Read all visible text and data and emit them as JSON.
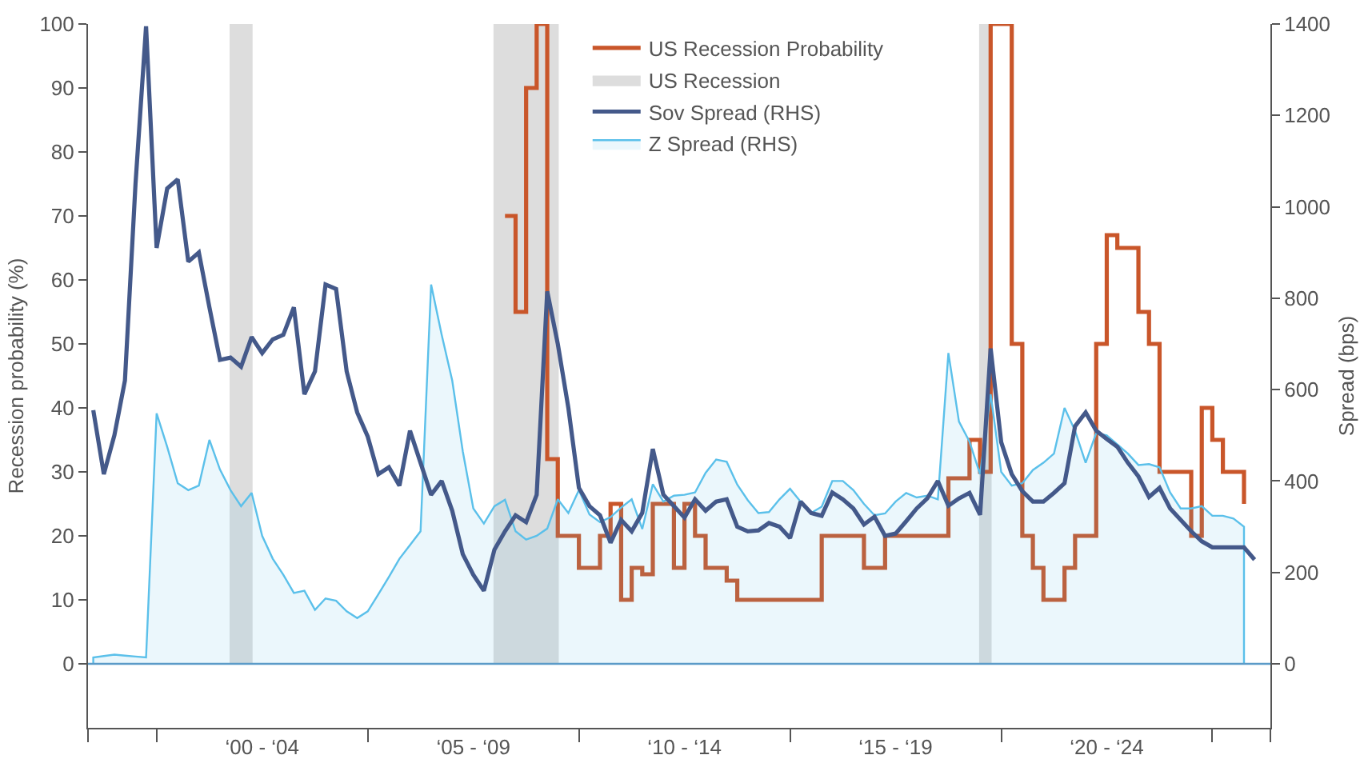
{
  "chart_data": {
    "type": "line",
    "ylabel": "Recession probability (%)",
    "y2label": "Spread (bps)",
    "ylim": [
      -10,
      100
    ],
    "y2lim": [
      -140,
      1400
    ],
    "yticks": [
      0,
      10,
      20,
      30,
      40,
      50,
      60,
      70,
      80,
      90,
      100
    ],
    "y2ticks": [
      0,
      200,
      400,
      600,
      800,
      1000,
      1200,
      1400
    ],
    "categories": [
      null,
      null,
      null,
      null,
      null,
      null,
      null,
      null,
      null,
      null,
      null,
      null,
      null,
      null,
      null,
      null,
      "‘00 - ‘04",
      null,
      null,
      null,
      null,
      null,
      null,
      null,
      null,
      null,
      null,
      null,
      null,
      null,
      null,
      null,
      null,
      null,
      null,
      null,
      "‘05 - ‘09",
      null,
      null,
      null,
      null,
      null,
      null,
      null,
      null,
      null,
      null,
      null,
      null,
      null,
      null,
      null,
      null,
      null,
      null,
      null,
      "‘10 - ‘14",
      null,
      null,
      null,
      null,
      null,
      null,
      null,
      null,
      null,
      null,
      null,
      null,
      null,
      null,
      null,
      null,
      null,
      null,
      null,
      "‘15 - ‘19",
      null,
      null,
      null,
      null,
      null,
      null,
      null,
      null,
      null,
      null,
      null,
      null,
      null,
      null,
      null,
      null,
      null,
      null,
      null,
      "‘20 - ‘24",
      null,
      null,
      null,
      null,
      null,
      null,
      null,
      null,
      null,
      null,
      null,
      null,
      null,
      null,
      null
    ],
    "legend": "top",
    "ref_lines": [
      {
        "axis": "y",
        "value": 0,
        "color": "#5b9bc8"
      }
    ],
    "series": [
      {
        "name": "US Recession Probability",
        "type": "step",
        "color": "#c9562a",
        "values": [
          null,
          null,
          null,
          null,
          null,
          null,
          null,
          null,
          null,
          null,
          null,
          null,
          null,
          null,
          null,
          null,
          null,
          null,
          null,
          null,
          null,
          null,
          null,
          null,
          null,
          null,
          null,
          null,
          null,
          null,
          null,
          null,
          null,
          null,
          null,
          null,
          null,
          null,
          null,
          70,
          55,
          90,
          100,
          32,
          20,
          20,
          15,
          15,
          20,
          25,
          10,
          15,
          14,
          25,
          25,
          15,
          25,
          20,
          15,
          15,
          13,
          10,
          10,
          10,
          10,
          10,
          10,
          10,
          10,
          20,
          20,
          20,
          20,
          15,
          15,
          20,
          20,
          20,
          20,
          20,
          20,
          29,
          29,
          35,
          30,
          100,
          100,
          50,
          20,
          15,
          10,
          10,
          15,
          20,
          20,
          50,
          67,
          65,
          65,
          55,
          50,
          30,
          30,
          30,
          20,
          40,
          35,
          30,
          30,
          25,
          null,
          null
        ]
      },
      {
        "name": "US Recession",
        "type": "area",
        "color": "#dddddd",
        "values": [
          null,
          null,
          null,
          null,
          null,
          null,
          null,
          null,
          null,
          null,
          null,
          null,
          null,
          100,
          100,
          100,
          null,
          null,
          null,
          null,
          null,
          null,
          null,
          null,
          null,
          null,
          null,
          null,
          null,
          null,
          null,
          null,
          null,
          null,
          null,
          null,
          null,
          null,
          100,
          100,
          100,
          100,
          100,
          100,
          100,
          null,
          null,
          null,
          null,
          null,
          null,
          null,
          null,
          null,
          null,
          null,
          null,
          null,
          null,
          null,
          null,
          null,
          null,
          null,
          null,
          null,
          null,
          null,
          null,
          null,
          null,
          null,
          null,
          null,
          null,
          null,
          null,
          null,
          null,
          null,
          null,
          null,
          null,
          null,
          100,
          100,
          null,
          null,
          null,
          null,
          null,
          null,
          null,
          null,
          null,
          null,
          null,
          null,
          null,
          null,
          null,
          null,
          null,
          null,
          null,
          null,
          null,
          null,
          null,
          null,
          null,
          null
        ]
      },
      {
        "name": "Sov Spread (RHS)",
        "axis": "y2",
        "color": "#44598a",
        "values": [
          555,
          415,
          500,
          620,
          1050,
          1395,
          910,
          1040,
          1060,
          880,
          900,
          780,
          665,
          670,
          650,
          715,
          680,
          710,
          720,
          780,
          590,
          640,
          830,
          820,
          640,
          550,
          497,
          415,
          430,
          390,
          510,
          440,
          370,
          400,
          335,
          240,
          195,
          160,
          250,
          290,
          325,
          310,
          370,
          815,
          700,
          560,
          385,
          345,
          325,
          265,
          315,
          290,
          330,
          470,
          370,
          345,
          320,
          360,
          335,
          355,
          360,
          300,
          290,
          292,
          308,
          300,
          275,
          355,
          330,
          324,
          375,
          360,
          340,
          305,
          322,
          280,
          285,
          312,
          340,
          362,
          400,
          346,
          362,
          374,
          326,
          690,
          485,
          415,
          378,
          355,
          355,
          374,
          395,
          520,
          550,
          510,
          492,
          475,
          440,
          410,
          365,
          385,
          340,
          315,
          290,
          268,
          255,
          255,
          255,
          255,
          228,
          null
        ]
      },
      {
        "name": "Z Spread (RHS)",
        "type": "area",
        "axis": "y2",
        "color": "#5bc0ea",
        "values": [
          14,
          17,
          20,
          18,
          16,
          14,
          548,
          475,
          395,
          380,
          390,
          490,
          425,
          380,
          345,
          374,
          280,
          230,
          195,
          155,
          160,
          118,
          143,
          138,
          115,
          100,
          115,
          152,
          190,
          230,
          260,
          290,
          830,
          720,
          620,
          465,
          340,
          307,
          345,
          359,
          290,
          272,
          280,
          296,
          360,
          330,
          380,
          327,
          310,
          321,
          342,
          360,
          295,
          393,
          355,
          368,
          370,
          375,
          418,
          447,
          442,
          392,
          358,
          330,
          332,
          360,
          383,
          355,
          330,
          344,
          400,
          400,
          380,
          350,
          325,
          329,
          355,
          374,
          364,
          368,
          360,
          680,
          530,
          486,
          415,
          590,
          420,
          390,
          395,
          424,
          440,
          460,
          560,
          510,
          440,
          505,
          500,
          480,
          460,
          435,
          437,
          430,
          375,
          340,
          340,
          345,
          324,
          324,
          318,
          300,
          null,
          null
        ]
      }
    ]
  }
}
